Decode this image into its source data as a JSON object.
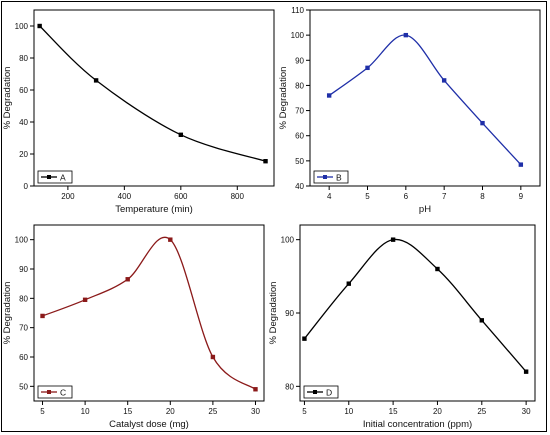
{
  "chart_data": [
    {
      "type": "line",
      "ylabel": "% Degradation",
      "xlabel": "Temperature (min)",
      "xlim": [
        80,
        930
      ],
      "ylim": [
        0,
        110
      ],
      "xticks": [
        200,
        400,
        600,
        800
      ],
      "yticks": [
        0,
        20,
        40,
        60,
        80,
        100
      ],
      "series": [
        {
          "name": "A",
          "color": "#000000",
          "x": [
            100,
            300,
            600,
            900
          ],
          "y": [
            100,
            66,
            32,
            15.5
          ]
        }
      ],
      "legend_position": "bottom-left"
    },
    {
      "type": "line",
      "ylabel": "% Degradation",
      "xlabel": "pH",
      "xlim": [
        3.5,
        9.5
      ],
      "ylim": [
        40,
        110
      ],
      "xticks": [
        4,
        5,
        6,
        7,
        8,
        9
      ],
      "yticks": [
        40,
        50,
        60,
        70,
        80,
        90,
        100,
        110
      ],
      "series": [
        {
          "name": "B",
          "color": "#1f2fa8",
          "x": [
            4,
            5,
            6,
            7,
            8,
            9
          ],
          "y": [
            76,
            87,
            100,
            82,
            65,
            48.5
          ]
        }
      ],
      "legend_position": "bottom-left"
    },
    {
      "type": "line",
      "ylabel": "% Degradation",
      "xlabel": "Catalyst dose (mg)",
      "xlim": [
        4,
        31
      ],
      "ylim": [
        45,
        105
      ],
      "xticks": [
        5,
        10,
        15,
        20,
        25,
        30
      ],
      "yticks": [
        50,
        60,
        70,
        80,
        90,
        100
      ],
      "series": [
        {
          "name": "C",
          "color": "#8b1a1a",
          "x": [
            5,
            10,
            15,
            20,
            25,
            30
          ],
          "y": [
            74,
            79.5,
            86.5,
            100,
            60,
            49
          ]
        }
      ],
      "legend_position": "bottom-left"
    },
    {
      "type": "line",
      "ylabel": "% Degradation",
      "xlabel": "Initial concentration (ppm)",
      "xlim": [
        4.5,
        31
      ],
      "ylim": [
        78,
        102
      ],
      "xticks": [
        5,
        10,
        15,
        20,
        25,
        30
      ],
      "yticks": [
        80,
        90,
        100
      ],
      "series": [
        {
          "name": "D",
          "color": "#000000",
          "x": [
            5,
            10,
            15,
            20,
            25,
            30
          ],
          "y": [
            86.5,
            94,
            100,
            96,
            89,
            82
          ]
        }
      ],
      "legend_position": "bottom-left"
    }
  ]
}
